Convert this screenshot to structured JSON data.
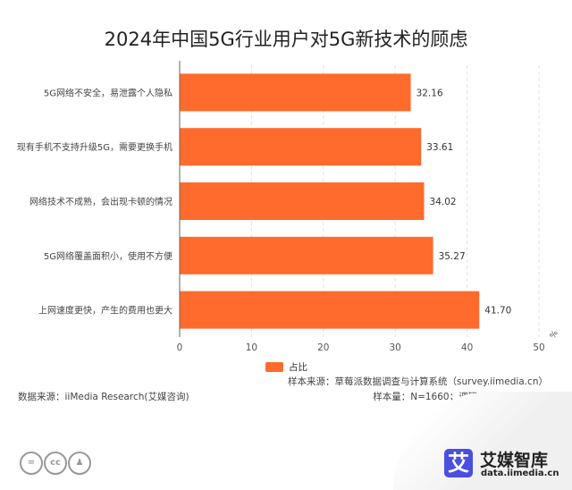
{
  "chart_data": {
    "type": "bar",
    "orientation": "horizontal",
    "title": "2024年中国5G行业用户对5G新技术的顾虑",
    "categories": [
      "5G网络不安全，易泄露个人隐私",
      "现有手机不支持升级5G，需要更换手机",
      "网络技术不成熟，会出现卡顿的情况",
      "5G网络覆盖面积小，使用不方便",
      "上网速度更快，产生的费用也更大"
    ],
    "series": [
      {
        "name": "占比",
        "values": [
          32.16,
          33.61,
          34.02,
          35.27,
          41.7
        ],
        "color": "#ff6b2c"
      }
    ],
    "value_labels": [
      "32.16",
      "33.61",
      "34.02",
      "35.27",
      "41.70"
    ],
    "xlim": [
      0,
      50
    ],
    "xticks": [
      "0",
      "10",
      "20",
      "30",
      "40",
      "50"
    ],
    "xunit": "%",
    "grid": "vertical dashed",
    "legend": "bottom"
  },
  "footer": {
    "source_sample": "样本来源：草莓派数据调查与计算系统（survey.iimedia.cn）",
    "data_source": "数据来源：iiMedia Research(艾媒咨询)",
    "sample_info": "样本量：N=1660；调研时间：2024年7月"
  },
  "logo": {
    "name": "艾媒智库",
    "url": "data.iimedia.cn",
    "mark": "艾"
  },
  "license_icons": [
    "=",
    "cc",
    "person"
  ]
}
